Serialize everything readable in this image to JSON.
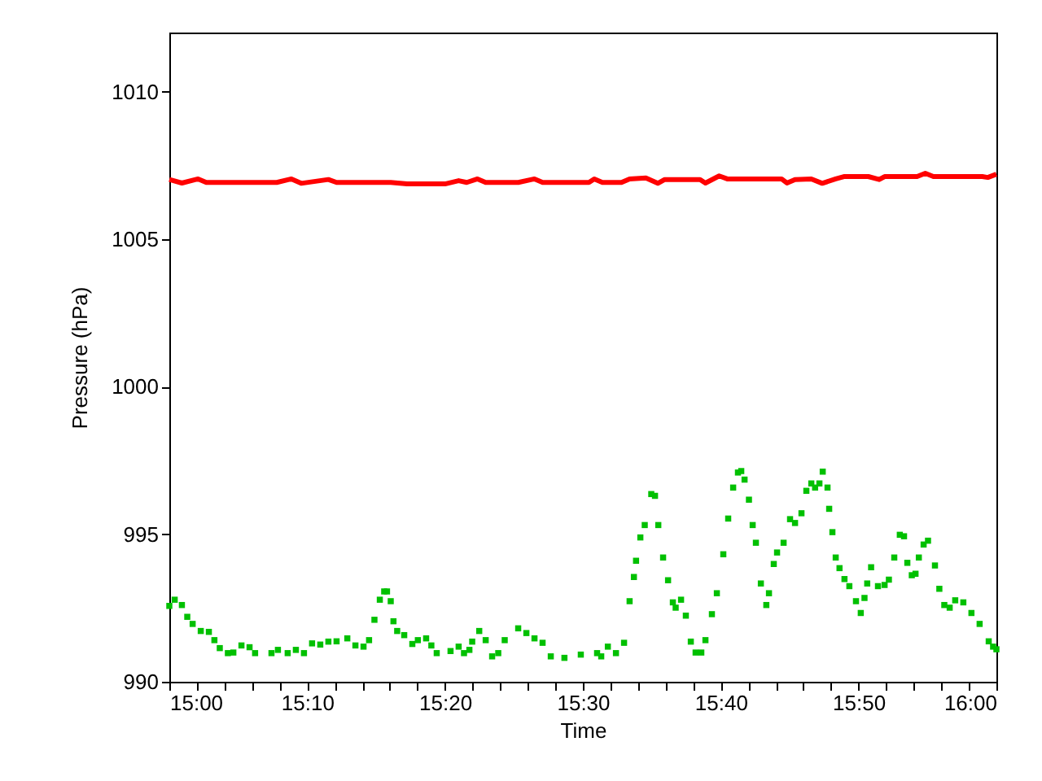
{
  "chart_data": {
    "type": "scatter",
    "xlabel": "Time",
    "ylabel": "Pressure (hPa)",
    "xlim": [
      15,
      16
    ],
    "ylim": [
      990,
      1012
    ],
    "xticks": [
      {
        "value": 15,
        "label": "15:00"
      },
      {
        "value": 15.0333,
        "label": null
      },
      {
        "value": 15.0667,
        "label": null
      },
      {
        "value": 15.1,
        "label": null
      },
      {
        "value": 15.1333,
        "label": null
      },
      {
        "value": 15.1667,
        "label": "15:10"
      },
      {
        "value": 15.2,
        "label": null
      },
      {
        "value": 15.2333,
        "label": null
      },
      {
        "value": 15.2667,
        "label": null
      },
      {
        "value": 15.3,
        "label": null
      },
      {
        "value": 15.3333,
        "label": "15:20"
      },
      {
        "value": 15.3667,
        "label": null
      },
      {
        "value": 15.4,
        "label": null
      },
      {
        "value": 15.4333,
        "label": null
      },
      {
        "value": 15.4667,
        "label": null
      },
      {
        "value": 15.5,
        "label": "15:30"
      },
      {
        "value": 15.5333,
        "label": null
      },
      {
        "value": 15.5667,
        "label": null
      },
      {
        "value": 15.6,
        "label": null
      },
      {
        "value": 15.6333,
        "label": null
      },
      {
        "value": 15.6667,
        "label": "15:40"
      },
      {
        "value": 15.7,
        "label": null
      },
      {
        "value": 15.7333,
        "label": null
      },
      {
        "value": 15.7667,
        "label": null
      },
      {
        "value": 15.8,
        "label": null
      },
      {
        "value": 15.8333,
        "label": "15:50"
      },
      {
        "value": 15.8667,
        "label": null
      },
      {
        "value": 15.9,
        "label": null
      },
      {
        "value": 15.9333,
        "label": null
      },
      {
        "value": 15.9667,
        "label": null
      },
      {
        "value": 16,
        "label": "16:00"
      }
    ],
    "yticks": [
      990,
      995,
      1000,
      1005,
      1010
    ],
    "series": [
      {
        "type": "line",
        "color": "#ff0000",
        "x": [
          15,
          15.0152,
          15.0348,
          15.0447,
          15.1299,
          15.1476,
          15.1594,
          15.1923,
          15.2022,
          15.2677,
          15.2874,
          15.3333,
          15.3498,
          15.3596,
          15.3726,
          15.3825,
          15.4219,
          15.4415,
          15.4514,
          15.5073,
          15.5138,
          15.5236,
          15.5467,
          15.5565,
          15.5762,
          15.5906,
          15.599,
          15.6417,
          15.6482,
          15.6648,
          15.6746,
          15.7402,
          15.7467,
          15.7565,
          15.7762,
          15.7894,
          15.8057,
          15.8156,
          15.8451,
          15.8583,
          15.8648,
          15.9041,
          15.914,
          15.9238,
          15.9829,
          15.9896,
          16
        ],
        "values": [
          1007.02,
          1006.9,
          1007.04,
          1006.92,
          1006.92,
          1007.04,
          1006.89,
          1007.02,
          1006.92,
          1006.92,
          1006.87,
          1006.87,
          1006.98,
          1006.92,
          1007.04,
          1006.92,
          1006.92,
          1007.04,
          1006.92,
          1006.92,
          1007.04,
          1006.92,
          1006.92,
          1007.04,
          1007.07,
          1006.89,
          1007.02,
          1007.02,
          1006.9,
          1007.14,
          1007.04,
          1007.04,
          1006.9,
          1007.02,
          1007.04,
          1006.89,
          1007.04,
          1007.12,
          1007.12,
          1007.02,
          1007.12,
          1007.12,
          1007.23,
          1007.12,
          1007.12,
          1007.09,
          1007.2
        ]
      },
      {
        "marker": "square",
        "color": "#00c000",
        "x": [
          15,
          15.0065,
          15.0152,
          15.0217,
          15.0282,
          15.038,
          15.0478,
          15.0545,
          15.061,
          15.0708,
          15.0774,
          15.0872,
          15.097,
          15.1037,
          15.1235,
          15.1313,
          15.1431,
          15.153,
          15.1628,
          15.1726,
          15.1825,
          15.1923,
          15.2022,
          15.2152,
          15.225,
          15.2348,
          15.2415,
          15.248,
          15.2545,
          15.2598,
          15.2632,
          15.2677,
          15.271,
          15.2755,
          15.284,
          15.2938,
          15.3005,
          15.3105,
          15.3168,
          15.3233,
          15.34,
          15.3498,
          15.3563,
          15.3628,
          15.3662,
          15.3747,
          15.3825,
          15.3903,
          15.3977,
          15.4055,
          15.4218,
          15.4317,
          15.4415,
          15.4513,
          15.4612,
          15.4777,
          15.4975,
          15.5172,
          15.5222,
          15.5302,
          15.54,
          15.5498,
          15.5565,
          15.5617,
          15.5643,
          15.5695,
          15.5748,
          15.5827,
          15.5872,
          15.5912,
          15.597,
          15.603,
          15.6088,
          15.6122,
          15.6187,
          15.6245,
          15.6305,
          15.6363,
          15.6432,
          15.6482,
          15.656,
          15.662,
          15.6698,
          15.6757,
          15.6817,
          15.6875,
          15.6915,
          15.6955,
          15.7008,
          15.7053,
          15.7092,
          15.7152,
          15.7218,
          15.725,
          15.7308,
          15.7348,
          15.7427,
          15.7505,
          15.7565,
          15.7643,
          15.7702,
          15.7762,
          15.7808,
          15.786,
          15.79,
          15.7958,
          15.7978,
          15.8017,
          15.8057,
          15.8103,
          15.8163,
          15.8222,
          15.8302,
          15.836,
          15.8405,
          15.8438,
          15.8485,
          15.8568,
          15.8648,
          15.87,
          15.8765,
          15.8832,
          15.8883,
          15.8923,
          15.8977,
          15.9022,
          15.9062,
          15.912,
          15.9173,
          15.9257,
          15.931,
          15.937,
          15.9435,
          15.9502,
          15.96,
          15.9698,
          15.9797,
          15.9907,
          15.996,
          16
        ],
        "values": [
          992.57,
          992.78,
          992.6,
          992.2,
          991.96,
          991.72,
          991.69,
          991.41,
          991.14,
          990.97,
          990.99,
          991.23,
          991.17,
          990.97,
          990.97,
          991.08,
          990.97,
          991.08,
          990.97,
          991.3,
          991.26,
          991.36,
          991.37,
          991.47,
          991.23,
          991.19,
          991.41,
          992.1,
          992.78,
          993.06,
          993.06,
          992.73,
          992.05,
          991.72,
          991.58,
          991.28,
          991.41,
          991.47,
          991.23,
          990.97,
          991.04,
          991.19,
          990.97,
          991.08,
          991.36,
          991.72,
          991.41,
          990.86,
          990.97,
          991.41,
          991.81,
          991.65,
          991.47,
          991.32,
          990.86,
          990.81,
          990.92,
          990.97,
          990.86,
          991.19,
          990.97,
          991.32,
          992.73,
          993.55,
          994.1,
          994.89,
          995.31,
          996.36,
          996.3,
          995.31,
          994.21,
          993.44,
          992.69,
          992.51,
          992.78,
          992.24,
          991.36,
          990.99,
          990.99,
          991.41,
          992.29,
          993.0,
          994.32,
          995.53,
          996.58,
          997.09,
          997.14,
          996.85,
          996.17,
          995.31,
          994.71,
          993.33,
          992.6,
          993.0,
          993.99,
          994.38,
          994.71,
          995.51,
          995.38,
          995.71,
          996.47,
          996.72,
          996.58,
          996.72,
          997.12,
          996.58,
          995.86,
          995.07,
          994.21,
          993.85,
          993.48,
          993.24,
          992.73,
          992.33,
          992.84,
          993.33,
          993.88,
          993.24,
          993.28,
          993.46,
          994.21,
          994.98,
          994.93,
          994.03,
          993.61,
          993.66,
          994.21,
          994.65,
          994.78,
          993.94,
          993.15,
          992.6,
          992.51,
          992.76,
          992.69,
          992.33,
          991.96,
          991.37,
          991.19,
          991.1
        ]
      }
    ]
  }
}
